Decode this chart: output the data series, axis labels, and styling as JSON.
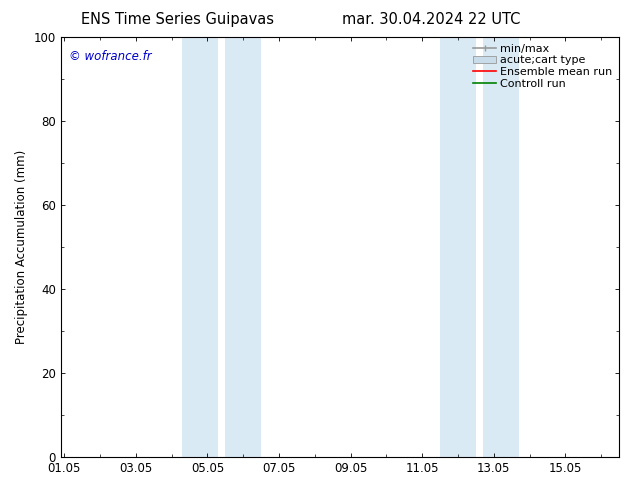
{
  "title_left": "ENS Time Series Guipavas",
  "title_right": "mar. 30.04.2024 22 UTC",
  "ylabel": "Precipitation Accumulation (mm)",
  "ylim": [
    0,
    100
  ],
  "yticks": [
    0,
    20,
    40,
    60,
    80,
    100
  ],
  "xtick_labels": [
    "01.05",
    "03.05",
    "05.05",
    "07.05",
    "09.05",
    "11.05",
    "13.05",
    "15.05"
  ],
  "xtick_positions": [
    0,
    2,
    4,
    6,
    8,
    10,
    12,
    14
  ],
  "xlim": [
    -0.1,
    15.5
  ],
  "shaded_bands": [
    {
      "x_start": 3.3,
      "x_end": 4.3,
      "color": "#daeaf5"
    },
    {
      "x_start": 4.5,
      "x_end": 5.5,
      "color": "#daeaf5"
    },
    {
      "x_start": 10.5,
      "x_end": 11.5,
      "color": "#daeaf5"
    },
    {
      "x_start": 11.7,
      "x_end": 12.7,
      "color": "#daeaf5"
    }
  ],
  "copyright_text": "© wofrance.fr",
  "copyright_color": "#0000cc",
  "legend_entries": [
    {
      "label": "min/max",
      "color": "#999999",
      "lw": 1.2,
      "style": "minmax"
    },
    {
      "label": "acute;cart type",
      "color": "#c8dcea",
      "lw": 8,
      "style": "box"
    },
    {
      "label": "Ensemble mean run",
      "color": "red",
      "lw": 1.2,
      "style": "line"
    },
    {
      "label": "Controll run",
      "color": "green",
      "lw": 1.2,
      "style": "line"
    }
  ],
  "bg_color": "#ffffff",
  "plot_bg_color": "#ffffff",
  "font_size": 8.5,
  "title_font_size": 10.5
}
